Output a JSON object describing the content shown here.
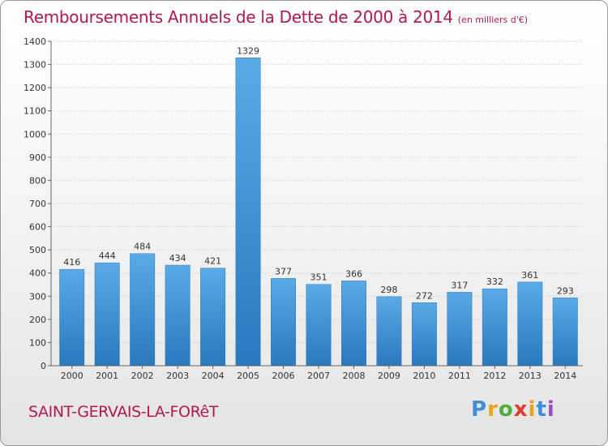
{
  "header": {
    "title": "Remboursements Annuels de la Dette de 2000 à 2014",
    "unit": "(en milliers d'€)"
  },
  "footer": {
    "commune": "SAINT-GERVAIS-LA-FORêT",
    "logo_letters": [
      "P",
      "r",
      "o",
      "x",
      "i",
      "t",
      "i"
    ],
    "logo_colors": [
      "#3f8fd8",
      "#e8a51c",
      "#4caf3a",
      "#e23a2e",
      "#e8a51c",
      "#3f8fd8",
      "#9c4fc0"
    ]
  },
  "chart_data": {
    "type": "bar",
    "title": "Remboursements Annuels de la Dette de 2000 à 2014",
    "subtitle": "(en milliers d'€)",
    "categories": [
      "2000",
      "2001",
      "2002",
      "2003",
      "2004",
      "2005",
      "2006",
      "2007",
      "2008",
      "2009",
      "2010",
      "2011",
      "2012",
      "2013",
      "2014"
    ],
    "values": [
      416,
      444,
      484,
      434,
      421,
      1329,
      377,
      351,
      366,
      298,
      272,
      317,
      332,
      361,
      293
    ],
    "value_labels": [
      "416",
      "444",
      "484",
      "434",
      "421",
      "1329",
      "377",
      "351",
      "366",
      "298",
      "272",
      "317",
      "332",
      "361",
      "293"
    ],
    "yticks": [
      "0",
      "100",
      "200",
      "300",
      "400",
      "500",
      "600",
      "700",
      "800",
      "900",
      "1000",
      "1100",
      "1200",
      "1300",
      "1400"
    ],
    "ylim": [
      0,
      1400
    ],
    "ystep": 100,
    "grid": true,
    "bar_color": "#4e9fdd",
    "bar_color_dark": "#2a78be"
  }
}
